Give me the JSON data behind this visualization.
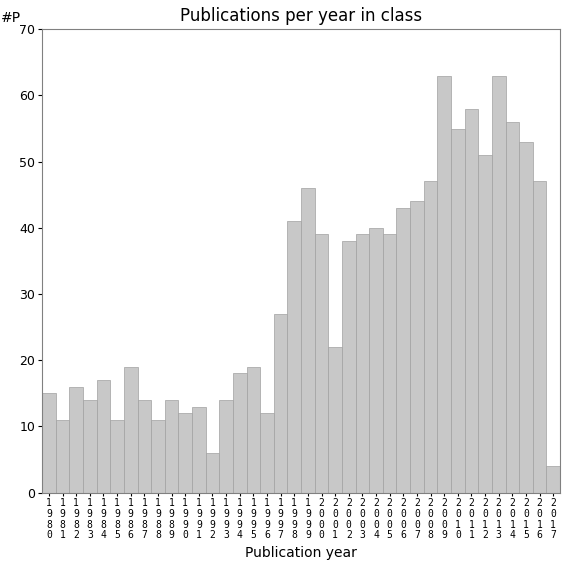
{
  "title": "Publications per year in class",
  "xlabel": "Publication year",
  "ylabel_text": "#P",
  "years": [
    1980,
    1981,
    1982,
    1983,
    1984,
    1985,
    1986,
    1987,
    1988,
    1989,
    1990,
    1991,
    1992,
    1993,
    1994,
    1995,
    1996,
    1997,
    1998,
    1999,
    2000,
    2001,
    2002,
    2003,
    2004,
    2005,
    2006,
    2007,
    2008,
    2009,
    2010,
    2011,
    2012,
    2013,
    2014,
    2015,
    2016,
    2017
  ],
  "values": [
    15,
    11,
    16,
    14,
    17,
    11,
    19,
    14,
    11,
    14,
    12,
    13,
    6,
    14,
    18,
    19,
    12,
    27,
    41,
    46,
    39,
    22,
    38,
    39,
    40,
    39,
    43,
    44,
    47,
    63,
    55,
    58,
    51,
    63,
    56,
    53,
    47,
    4
  ],
  "bar_color": "#c8c8c8",
  "bar_edge_color": "#a0a0a0",
  "ylim": [
    0,
    70
  ],
  "yticks": [
    0,
    10,
    20,
    30,
    40,
    50,
    60,
    70
  ],
  "background_color": "#ffffff",
  "title_fontsize": 12,
  "axis_label_fontsize": 10,
  "tick_label_fontsize": 9,
  "xtick_fontsize": 7
}
